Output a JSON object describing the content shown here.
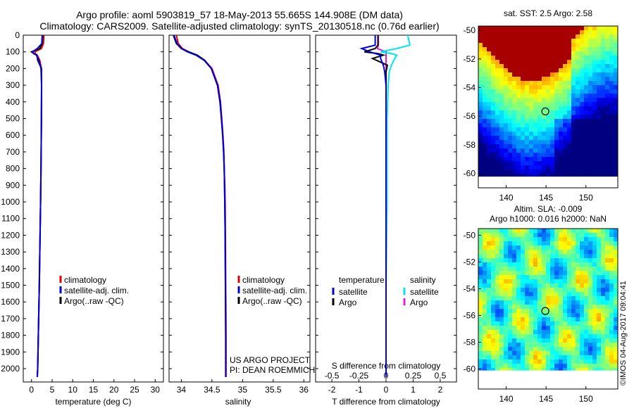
{
  "header": {
    "line1": "Argo profile: aoml 5903819_57 18-May-2013 55.665S 144.908E (DM data)",
    "line2": "Climatology: CARS2009. Satellite-adjusted climatology: synTS_20130518.nc (0.76d earlier)"
  },
  "colors": {
    "climatology": "#e00000",
    "satellite": "#0000dd",
    "argo": "#000000",
    "salinity_satellite": "#00e5ee",
    "salinity_argo": "#e020e0"
  },
  "chart_data": [
    {
      "type": "line",
      "id": "temperature",
      "xlabel": "temperature (deg C)",
      "ylabel": "",
      "xlim": [
        -2,
        32
      ],
      "ylim": [
        2080,
        0
      ],
      "xticks": [
        0,
        5,
        10,
        15,
        20,
        25,
        30
      ],
      "yticks": [
        0,
        100,
        200,
        300,
        400,
        500,
        600,
        700,
        800,
        900,
        1000,
        1100,
        1200,
        1300,
        1400,
        1500,
        1600,
        1700,
        1800,
        1900,
        2000
      ],
      "legend": [
        "climatology",
        "satellite-adj. clim.",
        "Argo(..raw -QC)"
      ],
      "depth": [
        0,
        50,
        80,
        100,
        110,
        120,
        150,
        200,
        300,
        500,
        800,
        1000,
        1500,
        2000,
        2050
      ],
      "series": [
        {
          "name": "climatology",
          "values": [
            3.0,
            2.9,
            2.4,
            0.8,
            0.9,
            1.4,
            2.0,
            2.4,
            2.45,
            2.4,
            2.3,
            2.2,
            1.9,
            1.5,
            1.4
          ]
        },
        {
          "name": "satellite-adj. clim.",
          "values": [
            2.6,
            2.5,
            1.4,
            0.2,
            0.5,
            1.2,
            1.8,
            2.3,
            2.45,
            2.4,
            2.3,
            2.2,
            1.9,
            1.5,
            1.4
          ]
        },
        {
          "name": "Argo(..raw -QC)",
          "values": [
            2.7,
            2.6,
            2.0,
            0.0,
            0.6,
            1.3,
            1.5,
            2.4,
            2.45,
            2.4,
            2.3,
            2.2,
            1.9,
            1.5,
            1.4
          ]
        }
      ]
    },
    {
      "type": "line",
      "id": "salinity",
      "xlabel": "salinity",
      "xlim": [
        33.8,
        36.1
      ],
      "ylim": [
        2080,
        0
      ],
      "xticks": [
        34,
        34.5,
        35,
        35.5,
        36
      ],
      "xticklabels": [
        "34",
        "34.5",
        "35",
        "35.5",
        "36"
      ],
      "legend": [
        "climatology",
        "satellite-adj. clim.",
        "Argo(..raw -QC)"
      ],
      "credit": [
        "US ARGO PROJECT",
        "PI: DEAN ROEMMICH"
      ],
      "depth": [
        0,
        50,
        80,
        100,
        120,
        150,
        200,
        300,
        400,
        500,
        600,
        700,
        800,
        900,
        1000,
        1200,
        1500,
        1800,
        2000,
        2050
      ],
      "series": [
        {
          "name": "climatology",
          "values": [
            33.92,
            33.95,
            34.02,
            34.12,
            34.25,
            34.38,
            34.5,
            34.6,
            34.64,
            34.66,
            34.68,
            34.695,
            34.7,
            34.71,
            34.715,
            34.72,
            34.725,
            34.73,
            34.73,
            34.73
          ]
        },
        {
          "name": "satellite-adj. clim.",
          "values": [
            33.88,
            33.93,
            34.0,
            34.1,
            34.24,
            34.37,
            34.49,
            34.59,
            34.635,
            34.655,
            34.675,
            34.69,
            34.7,
            34.705,
            34.71,
            34.715,
            34.72,
            34.725,
            34.725,
            34.725
          ]
        },
        {
          "name": "Argo(..raw -QC)",
          "values": [
            33.87,
            33.92,
            34.0,
            34.12,
            34.26,
            34.38,
            34.49,
            34.59,
            34.63,
            34.655,
            34.675,
            34.69,
            34.7,
            34.705,
            34.71,
            34.715,
            34.72,
            34.725,
            34.725,
            34.725
          ]
        }
      ]
    },
    {
      "type": "line",
      "id": "difference",
      "xlabel": "T difference from climatology",
      "xlim": [
        -2.6,
        2.6
      ],
      "ylim": [
        2080,
        0
      ],
      "top_title": "S difference from climatology",
      "xticks_T": [
        -2,
        -1,
        0,
        1,
        2
      ],
      "xticklabels_T": [
        "-2",
        "-1",
        "0",
        "1",
        "2"
      ],
      "xticks_S": [
        -0.5,
        -0.25,
        0,
        0.25,
        0.5
      ],
      "xticklabels_S": [
        "-0.5",
        "-0.25",
        "0",
        "0.25",
        "0.5"
      ],
      "legend_t_title": "temperature",
      "legend_s_title": "salinity",
      "legend_t": [
        "satellite",
        "Argo"
      ],
      "legend_s": [
        "satellite",
        "Argo"
      ],
      "depth": [
        0,
        60,
        80,
        100,
        110,
        120,
        140,
        180,
        220,
        300,
        500,
        1000,
        1500,
        2000,
        2050
      ],
      "series": [
        {
          "name": "T satellite",
          "values": [
            -0.4,
            -0.4,
            -0.9,
            -0.6,
            -0.4,
            -0.2,
            -0.2,
            -0.1,
            -0.05,
            0,
            0,
            0,
            0,
            0,
            0
          ]
        },
        {
          "name": "T Argo",
          "values": [
            -0.3,
            -0.3,
            -0.4,
            -0.8,
            -0.3,
            -0.1,
            -0.5,
            0.05,
            0,
            0,
            0,
            0,
            0,
            0,
            0
          ]
        },
        {
          "name": "S satellite",
          "values": [
            0.2,
            0.22,
            0.1,
            -0.05,
            0.05,
            0.1,
            0.08,
            0.05,
            0.03,
            0.02,
            0.01,
            0.01,
            0.0,
            0.0,
            0.0
          ]
        },
        {
          "name": "S Argo",
          "values": [
            -0.07,
            -0.07,
            -0.08,
            0.0,
            0.0,
            0.0,
            0.0,
            0.0,
            0.0,
            0.0,
            0.0,
            0.0,
            0.0,
            0.0,
            0.0
          ]
        }
      ]
    },
    {
      "type": "heatmap",
      "id": "sst_map",
      "title": "sat. SST: 2.5 Argo: 2.58",
      "xlim": [
        136.5,
        154
      ],
      "ylim": [
        -61,
        -49.7
      ],
      "xticks": [
        140,
        145,
        150
      ],
      "yticks": [
        -50,
        -52,
        -54,
        -56,
        -58,
        -60
      ],
      "marker": {
        "lon": 144.908,
        "lat": -55.665
      }
    },
    {
      "type": "heatmap",
      "id": "sla_map",
      "title": "Altim. SLA: -0.009",
      "subtitle": "Argo h1000: 0.016 h2000: NaN",
      "xlim": [
        136.5,
        154
      ],
      "ylim": [
        -61.5,
        -49.5
      ],
      "xticks": [
        140,
        145,
        150
      ],
      "yticks": [
        -50,
        -52,
        -54,
        -56,
        -58,
        -60
      ],
      "marker": {
        "lon": 144.908,
        "lat": -55.665
      }
    }
  ],
  "footer": {
    "stamp": "©IMOS 04-Aug-2017 09:04:41"
  }
}
